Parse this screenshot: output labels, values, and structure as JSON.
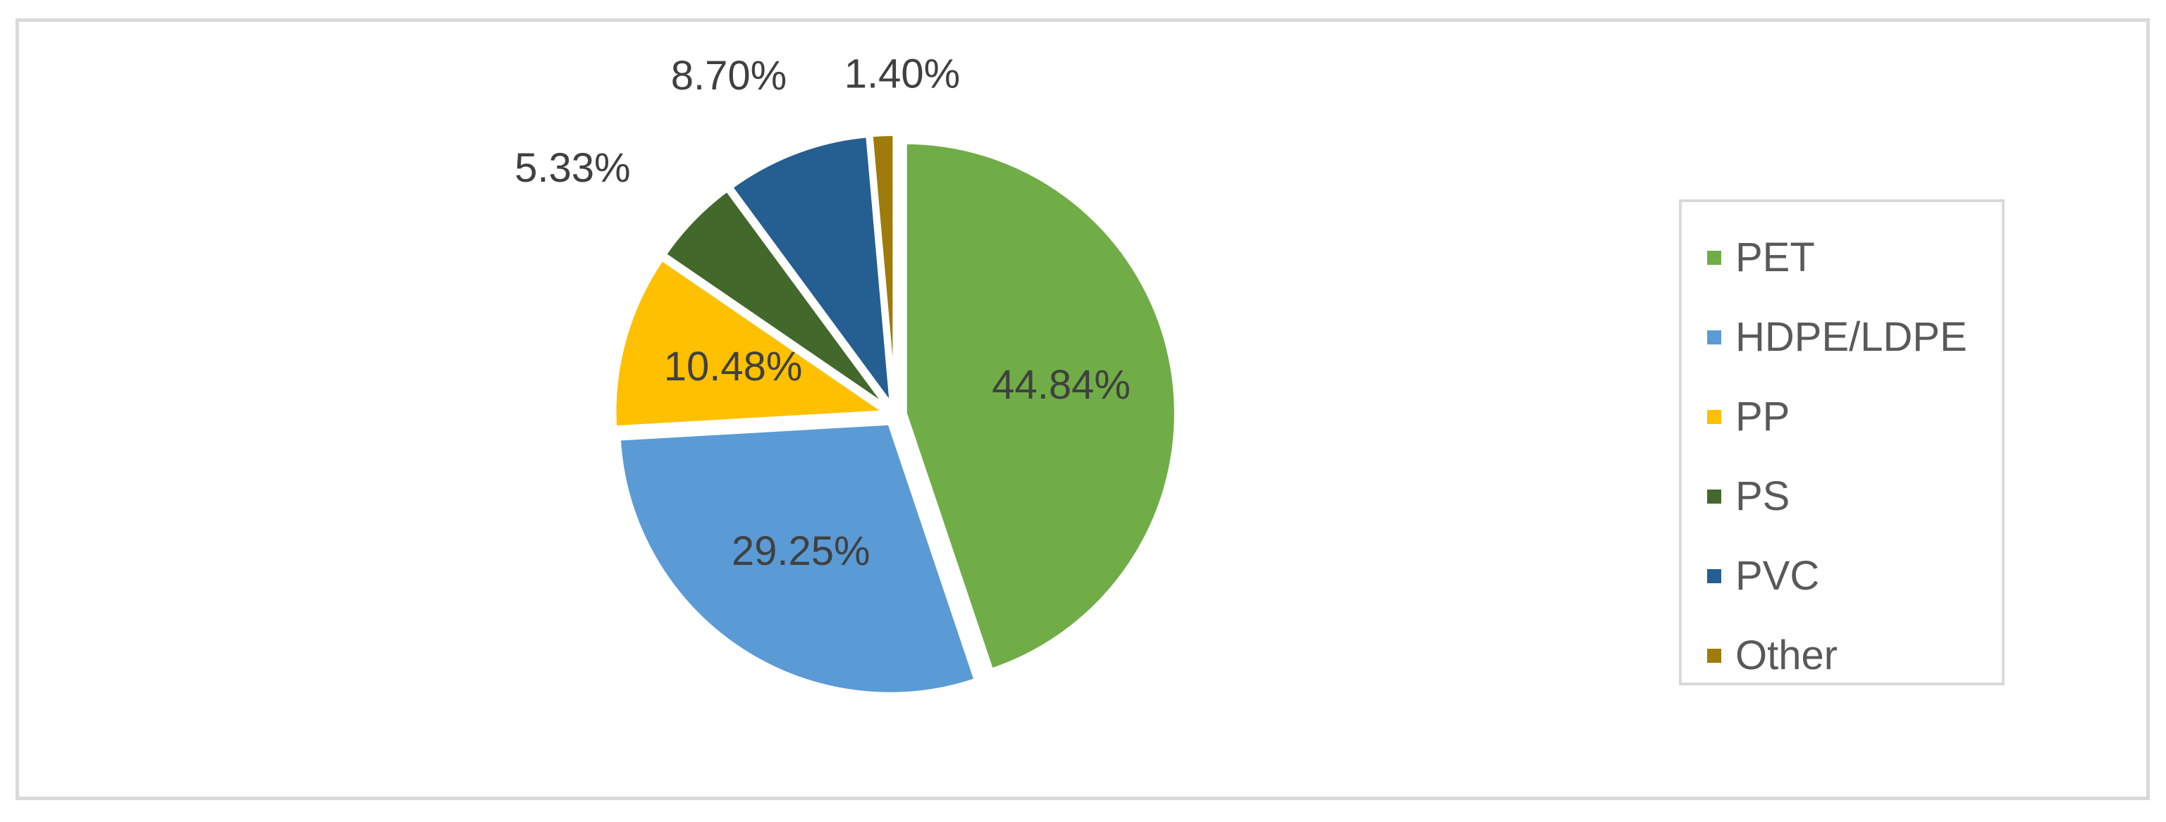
{
  "chart_data": {
    "type": "pie",
    "categories": [
      "PET",
      "HDPE/LDPE",
      "PP",
      "PS",
      "PVC",
      "Other"
    ],
    "values": [
      44.84,
      29.25,
      10.48,
      5.33,
      8.7,
      1.4
    ],
    "labels": [
      "44.84%",
      "29.25%",
      "10.48%",
      "5.33%",
      "8.70%",
      "1.40%"
    ],
    "colors": [
      "#70AD47",
      "#5B9BD5",
      "#FFC000",
      "#43682B",
      "#255E91",
      "#9E7B0A"
    ],
    "legend_position": "right"
  }
}
